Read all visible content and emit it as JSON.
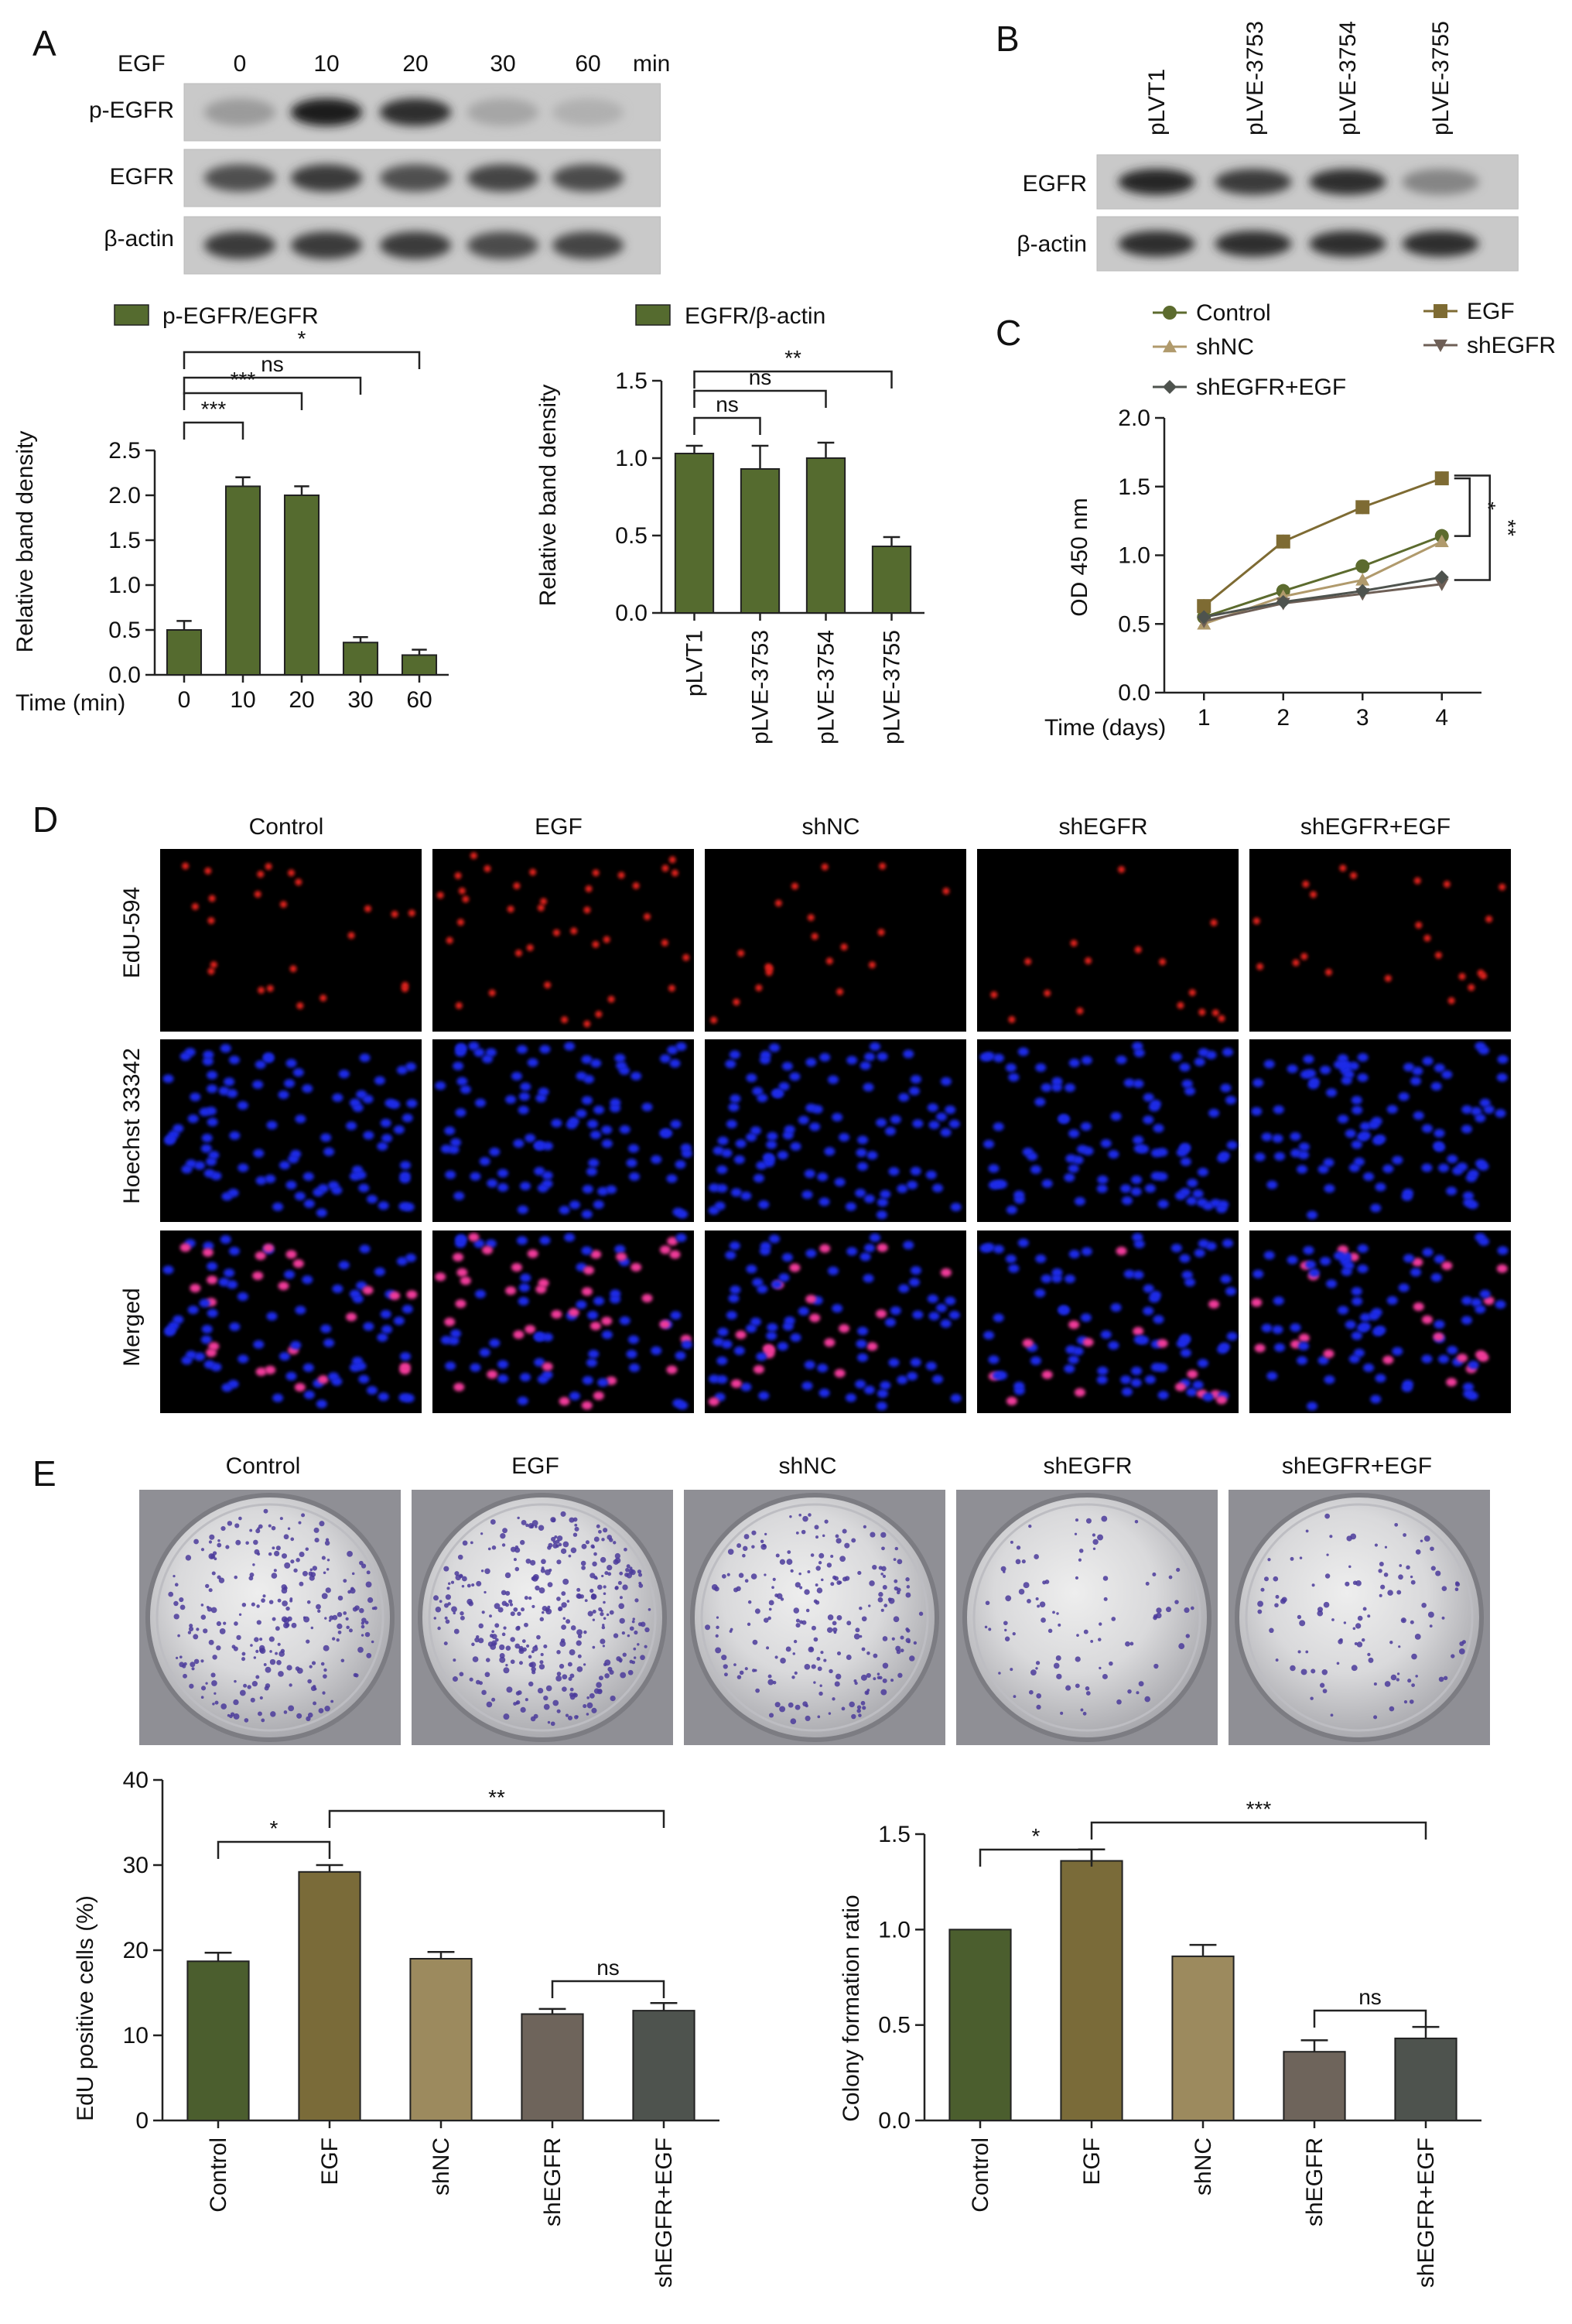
{
  "panel_labels": [
    "A",
    "B",
    "C",
    "D",
    "E"
  ],
  "colors": {
    "olive": "#556B2F",
    "dark_olive": "#4B5E2E",
    "ochre": "#7A6B39",
    "tan": "#9C8A5E",
    "brown_grey": "#6E645B",
    "dark_grey": "#4E534E",
    "edu_red": "#E0201A",
    "hoechst_blue": "#1E2BE8",
    "merged_pink": "#F03A9A",
    "crystal_violet": "#4B3B9B"
  },
  "panel_a": {
    "blot": {
      "header_label": "EGF",
      "time_points": [
        "0",
        "10",
        "20",
        "30",
        "60"
      ],
      "unit": "min",
      "rows": [
        "p-EGFR",
        "EGFR",
        "β-actin"
      ],
      "intensities": [
        [
          0.35,
          0.95,
          0.85,
          0.3,
          0.25
        ],
        [
          0.7,
          0.8,
          0.7,
          0.75,
          0.72
        ],
        [
          0.8,
          0.8,
          0.8,
          0.72,
          0.75
        ]
      ]
    }
  },
  "panel_b": {
    "blot": {
      "lanes": [
        "pLVT1",
        "pLVE-3753",
        "pLVE-3754",
        "pLVE-3755"
      ],
      "rows": [
        "EGFR",
        "β-actin"
      ],
      "intensities": [
        [
          0.9,
          0.8,
          0.85,
          0.45
        ],
        [
          0.85,
          0.85,
          0.85,
          0.85
        ]
      ]
    }
  },
  "panel_d": {
    "columns": [
      "Control",
      "EGF",
      "shNC",
      "shEGFR",
      "shEGFR+EGF"
    ],
    "row_labels": [
      "EdU-594",
      "Hoechst 33342",
      "Merged"
    ],
    "edu_fraction": [
      0.19,
      0.29,
      0.19,
      0.12,
      0.13
    ]
  },
  "panel_e": {
    "columns": [
      "Control",
      "EGF",
      "shNC",
      "shEGFR",
      "shEGFR+EGF"
    ],
    "colony_ratio": [
      1.0,
      1.36,
      0.86,
      0.36,
      0.43
    ]
  },
  "chart_data": [
    {
      "id": "a_pegfr",
      "type": "bar",
      "legend": "p-EGFR/EGFR",
      "xlabel_prefix": "Time (min)",
      "categories": [
        "0",
        "10",
        "20",
        "30",
        "60"
      ],
      "values": [
        0.5,
        2.1,
        2.0,
        0.36,
        0.22
      ],
      "errors": [
        0.1,
        0.1,
        0.1,
        0.06,
        0.06
      ],
      "ylabel": "Relative band density",
      "ylim": [
        0,
        2.5
      ],
      "yticks": [
        0.0,
        0.5,
        1.0,
        1.5,
        2.0,
        2.5
      ],
      "ytick_labels": [
        "0.0",
        "0.5",
        "1.0",
        "1.5",
        "2.0",
        "2.5"
      ],
      "significance": [
        {
          "from": 0,
          "to": 1,
          "label": "***"
        },
        {
          "from": 0,
          "to": 2,
          "label": "***"
        },
        {
          "from": 0,
          "to": 3,
          "label": "ns"
        },
        {
          "from": 0,
          "to": 4,
          "label": "*"
        }
      ]
    },
    {
      "id": "a_egfr",
      "type": "bar",
      "legend": "EGFR/β-actin",
      "categories": [
        "pLVT1",
        "pLVE-3753",
        "pLVE-3754",
        "pLVE-3755"
      ],
      "values": [
        1.03,
        0.93,
        1.0,
        0.43
      ],
      "errors": [
        0.05,
        0.15,
        0.1,
        0.06
      ],
      "ylabel": "Relative band density",
      "ylim": [
        0,
        1.5
      ],
      "yticks": [
        0.0,
        0.5,
        1.0,
        1.5
      ],
      "ytick_labels": [
        "0.0",
        "0.5",
        "1.0",
        "1.5"
      ],
      "significance": [
        {
          "from": 0,
          "to": 1,
          "label": "ns"
        },
        {
          "from": 0,
          "to": 2,
          "label": "ns"
        },
        {
          "from": 0,
          "to": 3,
          "label": "**"
        }
      ]
    },
    {
      "id": "c_od",
      "type": "line",
      "xlabel_prefix": "Time (days)",
      "x": [
        1,
        2,
        3,
        4
      ],
      "xlim": [
        0.5,
        4.5
      ],
      "ylabel": "OD 450 nm",
      "ylim": [
        0,
        2.0
      ],
      "yticks": [
        0.0,
        0.5,
        1.0,
        1.5,
        2.0
      ],
      "ytick_labels": [
        "0.0",
        "0.5",
        "1.0",
        "1.5",
        "2.0"
      ],
      "series": [
        {
          "name": "Control",
          "values": [
            0.55,
            0.74,
            0.92,
            1.14
          ],
          "color": "#5C6B2E",
          "marker": "circle"
        },
        {
          "name": "EGF",
          "values": [
            0.63,
            1.1,
            1.35,
            1.56
          ],
          "color": "#7E6B33",
          "marker": "square"
        },
        {
          "name": "shNC",
          "values": [
            0.5,
            0.7,
            0.82,
            1.1
          ],
          "color": "#B09A6C",
          "marker": "triangle"
        },
        {
          "name": "shEGFR",
          "values": [
            0.52,
            0.65,
            0.72,
            0.79
          ],
          "color": "#6E5F56",
          "marker": "triangle-down"
        },
        {
          "name": "shEGFR+EGF",
          "values": [
            0.55,
            0.66,
            0.74,
            0.84
          ],
          "color": "#4E534E",
          "marker": "diamond"
        }
      ],
      "significance": [
        {
          "label": "*"
        },
        {
          "label": "**"
        }
      ]
    },
    {
      "id": "e_edu",
      "type": "bar",
      "categories": [
        "Control",
        "EGF",
        "shNC",
        "shEGFR",
        "shEGFR+EGF"
      ],
      "values": [
        18.7,
        29.2,
        19.0,
        12.5,
        12.9
      ],
      "errors": [
        1.0,
        0.8,
        0.8,
        0.6,
        0.9
      ],
      "ylabel": "EdU positive cells (%)",
      "ylim": [
        0,
        40
      ],
      "yticks": [
        0,
        10,
        20,
        30,
        40
      ],
      "ytick_labels": [
        "0",
        "10",
        "20",
        "30",
        "40"
      ],
      "significance": [
        {
          "from": 0,
          "to": 1,
          "label": "*"
        },
        {
          "from": 1,
          "to": 4,
          "label": "**"
        },
        {
          "from": 3,
          "to": 4,
          "label": "ns"
        }
      ]
    },
    {
      "id": "e_colony",
      "type": "bar",
      "categories": [
        "Control",
        "EGF",
        "shNC",
        "shEGFR",
        "shEGFR+EGF"
      ],
      "values": [
        1.0,
        1.36,
        0.86,
        0.36,
        0.43
      ],
      "errors": [
        0.0,
        0.06,
        0.06,
        0.06,
        0.06
      ],
      "ylabel": "Colony formation ratio",
      "ylim": [
        0,
        1.5
      ],
      "yticks": [
        0.0,
        0.5,
        1.0,
        1.5
      ],
      "ytick_labels": [
        "0.0",
        "0.5",
        "1.0",
        "1.5"
      ],
      "significance": [
        {
          "from": 0,
          "to": 1,
          "label": "*"
        },
        {
          "from": 1,
          "to": 4,
          "label": "***"
        },
        {
          "from": 3,
          "to": 4,
          "label": "ns"
        }
      ]
    }
  ]
}
